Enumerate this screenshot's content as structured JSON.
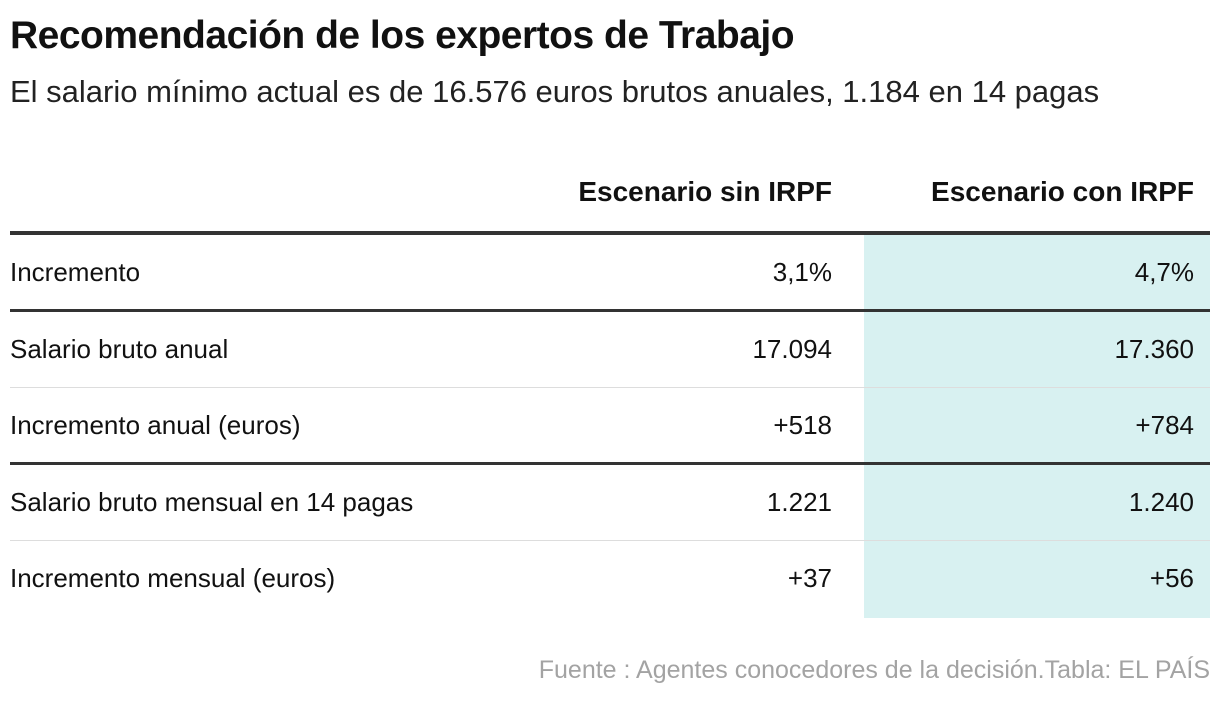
{
  "chart_data": {
    "type": "table",
    "title": "Recomendación de los expertos de Trabajo",
    "subtitle": "El salario mínimo actual es de 16.576 euros brutos anuales, 1.184 en 14 pagas",
    "columns": [
      "",
      "Escenario sin IRPF",
      "Escenario con IRPF"
    ],
    "rows": [
      {
        "label": "Incremento",
        "values": [
          "3,1%",
          "4,7%"
        ]
      },
      {
        "label": "Salario bruto anual",
        "values": [
          "17.094",
          "17.360"
        ]
      },
      {
        "label": "Incremento anual (euros)",
        "values": [
          "+518",
          "+784"
        ]
      },
      {
        "label": "Salario bruto mensual en 14 pagas",
        "values": [
          "1.221",
          "1.240"
        ]
      },
      {
        "label": "Incremento mensual (euros)",
        "values": [
          "+37",
          "+56"
        ]
      }
    ],
    "highlight_color": "#d8f1f1",
    "source": "Fuente : Agentes conocedores de la decisión.Tabla: EL PAÍS"
  }
}
